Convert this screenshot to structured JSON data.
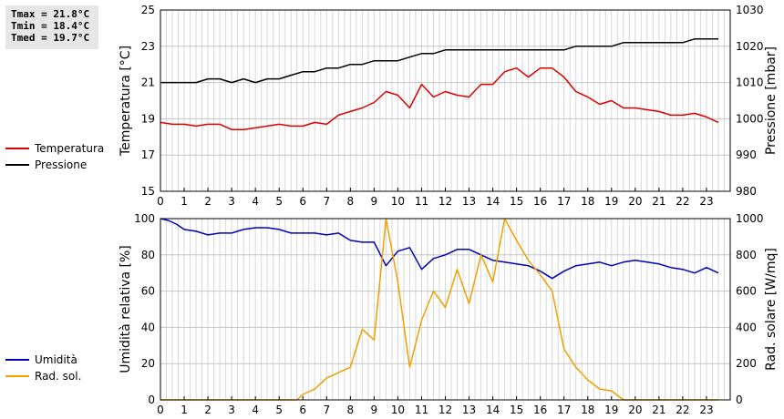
{
  "stats": {
    "tmax": "Tmax = 21.8°C",
    "tmin": "Tmin = 18.4°C",
    "tmed": "Tmed = 19.7°C"
  },
  "legend_top": [
    {
      "label": "Temperatura",
      "color": "#dd0000"
    },
    {
      "label": "Pressione",
      "color": "#000000"
    }
  ],
  "legend_bottom": [
    {
      "label": "Umidità",
      "color": "#0000bb"
    },
    {
      "label": "Rad. sol.",
      "color": "#f0a000"
    }
  ],
  "chart_data": [
    {
      "type": "line",
      "xlim": [
        0,
        24
      ],
      "x_ticks": [
        0,
        1,
        2,
        3,
        4,
        5,
        6,
        7,
        8,
        9,
        10,
        11,
        12,
        13,
        14,
        15,
        16,
        17,
        18,
        19,
        20,
        21,
        22,
        23
      ],
      "grid": true,
      "left_axis": {
        "label": "Temperatura [°C]",
        "ylim": [
          15,
          25
        ],
        "ticks": [
          15,
          17,
          19,
          21,
          23,
          25
        ]
      },
      "right_axis": {
        "label": "Pressione [mbar]",
        "ylim": [
          980,
          1030
        ],
        "ticks": [
          980,
          990,
          1000,
          1010,
          1020,
          1030
        ]
      },
      "series": [
        {
          "name": "Temperatura",
          "axis": "left",
          "color": "#dd0000",
          "x": [
            0,
            0.5,
            1,
            1.5,
            2,
            2.5,
            3,
            3.5,
            4,
            4.5,
            5,
            5.5,
            6,
            6.5,
            7,
            7.5,
            8,
            8.5,
            9,
            9.5,
            10,
            10.5,
            11,
            11.5,
            12,
            12.5,
            13,
            13.5,
            14,
            14.5,
            15,
            15.5,
            16,
            16.5,
            17,
            17.5,
            18,
            18.5,
            19,
            19.5,
            20,
            20.5,
            21,
            21.5,
            22,
            22.5,
            23,
            23.5
          ],
          "y": [
            18.8,
            18.7,
            18.7,
            18.6,
            18.7,
            18.7,
            18.4,
            18.4,
            18.5,
            18.6,
            18.7,
            18.6,
            18.6,
            18.8,
            18.7,
            19.2,
            19.4,
            19.6,
            19.9,
            20.5,
            20.3,
            19.6,
            20.9,
            20.2,
            20.5,
            20.3,
            20.2,
            20.9,
            20.9,
            21.6,
            21.8,
            21.3,
            21.8,
            21.8,
            21.3,
            20.5,
            20.2,
            19.8,
            20.0,
            19.6,
            19.6,
            19.5,
            19.4,
            19.2,
            19.2,
            19.3,
            19.1,
            18.8
          ]
        },
        {
          "name": "Pressione",
          "axis": "right",
          "color": "#000000",
          "x": [
            0,
            0.5,
            1,
            1.5,
            2,
            2.5,
            3,
            3.5,
            4,
            4.5,
            5,
            5.5,
            6,
            6.5,
            7,
            7.5,
            8,
            8.5,
            9,
            9.5,
            10,
            10.5,
            11,
            11.5,
            12,
            12.5,
            13,
            13.5,
            14,
            14.5,
            15,
            15.5,
            16,
            16.5,
            17,
            17.5,
            18,
            18.5,
            19,
            19.5,
            20,
            20.5,
            21,
            21.5,
            22,
            22.5,
            23,
            23.5
          ],
          "y": [
            1010,
            1010,
            1010,
            1010,
            1011,
            1011,
            1010,
            1011,
            1010,
            1011,
            1011,
            1012,
            1013,
            1013,
            1014,
            1014,
            1015,
            1015,
            1016,
            1016,
            1016,
            1017,
            1018,
            1018,
            1019,
            1019,
            1019,
            1019,
            1019,
            1019,
            1019,
            1019,
            1019,
            1019,
            1019,
            1020,
            1020,
            1020,
            1020,
            1021,
            1021,
            1021,
            1021,
            1021,
            1021,
            1022,
            1022,
            1022
          ]
        }
      ]
    },
    {
      "type": "line",
      "xlim": [
        0,
        24
      ],
      "x_ticks": [
        0,
        1,
        2,
        3,
        4,
        5,
        6,
        7,
        8,
        9,
        10,
        11,
        12,
        13,
        14,
        15,
        16,
        17,
        18,
        19,
        20,
        21,
        22,
        23
      ],
      "grid": true,
      "left_axis": {
        "label": "Umidità relativa [%]",
        "ylim": [
          0,
          100
        ],
        "ticks": [
          0,
          20,
          40,
          60,
          80,
          100
        ]
      },
      "right_axis": {
        "label": "Rad. solare [W/mq]",
        "ylim": [
          0,
          1000
        ],
        "ticks": [
          0,
          200,
          400,
          600,
          800,
          1000
        ]
      },
      "series": [
        {
          "name": "Umidità",
          "axis": "left",
          "color": "#0000bb",
          "x": [
            0,
            0.33,
            0.67,
            1,
            1.5,
            2,
            2.5,
            3,
            3.5,
            4,
            4.5,
            5,
            5.5,
            6,
            6.5,
            7,
            7.5,
            8,
            8.5,
            9,
            9.5,
            10,
            10.5,
            11,
            11.5,
            12,
            12.5,
            13,
            13.5,
            14,
            14.5,
            15,
            15.5,
            16,
            16.5,
            17,
            17.5,
            18,
            18.5,
            19,
            19.5,
            20,
            20.5,
            21,
            21.5,
            22,
            22.5,
            23,
            23.5
          ],
          "y": [
            100,
            99,
            97,
            94,
            93,
            91,
            92,
            92,
            94,
            95,
            95,
            94,
            92,
            92,
            92,
            91,
            92,
            88,
            87,
            87,
            74,
            82,
            84,
            72,
            78,
            80,
            83,
            83,
            80,
            77,
            76,
            75,
            74,
            71,
            67,
            71,
            74,
            75,
            76,
            74,
            76,
            77,
            76,
            75,
            73,
            72,
            70,
            73,
            70
          ]
        },
        {
          "name": "Rad. sol.",
          "axis": "right",
          "color": "#f0a000",
          "x": [
            0,
            1,
            2,
            3,
            4,
            5,
            5.75,
            6,
            6.5,
            7,
            7.5,
            8,
            8.5,
            9,
            9.5,
            10,
            10.5,
            11,
            11.5,
            12,
            12.5,
            13,
            13.5,
            14,
            14.5,
            15,
            15.5,
            16,
            16.5,
            17,
            17.5,
            18,
            18.5,
            19,
            19.5,
            20,
            21,
            22,
            23,
            23.5
          ],
          "y": [
            0,
            0,
            0,
            0,
            0,
            0,
            0,
            30,
            60,
            120,
            150,
            180,
            390,
            330,
            1000,
            650,
            180,
            440,
            600,
            510,
            720,
            530,
            800,
            650,
            1050,
            880,
            770,
            690,
            600,
            280,
            180,
            110,
            60,
            50,
            0,
            0,
            0,
            0,
            0,
            0
          ]
        }
      ]
    }
  ]
}
